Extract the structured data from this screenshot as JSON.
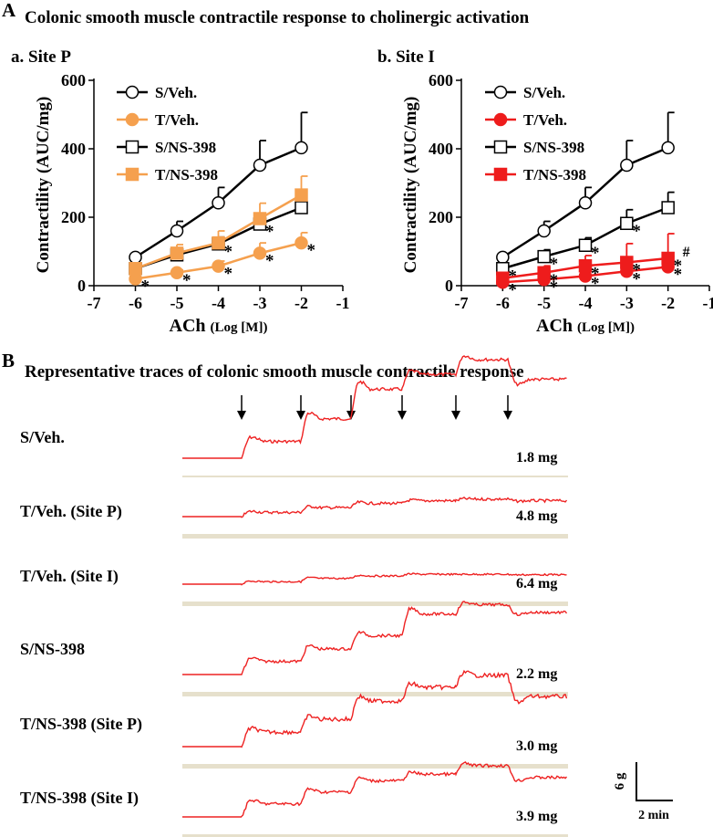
{
  "figure": {
    "panel_a_letter": "A",
    "panel_a_title": "Colonic smooth muscle contractile response to cholinergic activation",
    "panel_b_letter": "B",
    "panel_b_title": "Representative traces of colonic smooth muscle contractile response",
    "scale_bar": {
      "y_label": "6 g",
      "x_label": "2 min"
    }
  },
  "colors": {
    "black": "#000000",
    "orange": "#f5a04e",
    "red": "#ee1c1c",
    "trace": "#ee2222",
    "baseline_bar": "#e6e0cc"
  },
  "chart_data": [
    {
      "type": "line",
      "panel_label": "a. Site P",
      "ylabel": "Contractility (AUC/mg)",
      "xlabel_main": "ACh",
      "xlabel_unit": "(Log [M])",
      "x_ticks": [
        -7,
        -6,
        -5,
        -4,
        -3,
        -2,
        -1
      ],
      "y_ticks": [
        0,
        200,
        400,
        600
      ],
      "xlim": [
        -7,
        -1
      ],
      "ylim": [
        0,
        600
      ],
      "x": [
        -6,
        -5,
        -4,
        -3,
        -2
      ],
      "series": [
        {
          "name": "S/Veh.",
          "color": "#000000",
          "marker": "circle",
          "filled": false,
          "values": [
            83,
            160,
            242,
            352,
            403
          ],
          "errors": [
            8,
            28,
            45,
            72,
            103
          ]
        },
        {
          "name": "T/Veh.",
          "color": "#f5a04e",
          "marker": "circle",
          "filled": true,
          "values": [
            20,
            38,
            57,
            95,
            125
          ],
          "errors": [
            6,
            8,
            15,
            30,
            30
          ],
          "stars": [
            true,
            true,
            true,
            true,
            true
          ]
        },
        {
          "name": "S/NS-398",
          "color": "#000000",
          "marker": "square",
          "filled": false,
          "values": [
            50,
            90,
            122,
            180,
            228
          ],
          "errors": [
            8,
            15,
            20,
            30,
            35
          ],
          "stars": [
            false,
            false,
            true,
            true,
            false
          ]
        },
        {
          "name": "T/NS-398",
          "color": "#f5a04e",
          "marker": "square",
          "filled": true,
          "values": [
            50,
            95,
            125,
            196,
            265
          ],
          "errors": [
            10,
            25,
            35,
            45,
            55
          ]
        }
      ]
    },
    {
      "type": "line",
      "panel_label": "b. Site I",
      "ylabel": "Contractility (AUC/mg)",
      "xlabel_main": "ACh",
      "xlabel_unit": "(Log [M])",
      "x_ticks": [
        -7,
        -6,
        -5,
        -4,
        -3,
        -2,
        -1
      ],
      "y_ticks": [
        0,
        200,
        400,
        600
      ],
      "xlim": [
        -7,
        -1
      ],
      "ylim": [
        0,
        600
      ],
      "x": [
        -6,
        -5,
        -4,
        -3,
        -2
      ],
      "series": [
        {
          "name": "S/Veh.",
          "color": "#000000",
          "marker": "circle",
          "filled": false,
          "values": [
            83,
            160,
            242,
            352,
            403
          ],
          "errors": [
            8,
            28,
            45,
            72,
            103
          ]
        },
        {
          "name": "T/Veh.",
          "color": "#ee1c1c",
          "marker": "circle",
          "filled": true,
          "values": [
            10,
            18,
            28,
            42,
            55
          ],
          "errors": [
            8,
            12,
            15,
            25,
            30
          ],
          "stars": [
            true,
            true,
            true,
            true,
            true
          ]
        },
        {
          "name": "S/NS-398",
          "color": "#000000",
          "marker": "square",
          "filled": false,
          "values": [
            50,
            85,
            118,
            182,
            228
          ],
          "errors": [
            8,
            20,
            22,
            40,
            45
          ],
          "stars": [
            true,
            true,
            true,
            true,
            false
          ]
        },
        {
          "name": "T/NS-398",
          "color": "#ee1c1c",
          "marker": "square",
          "filled": true,
          "values": [
            22,
            38,
            58,
            68,
            80
          ],
          "errors": [
            15,
            20,
            30,
            55,
            72
          ],
          "stars": [
            false,
            true,
            true,
            true,
            true
          ],
          "hash": [
            false,
            false,
            false,
            false,
            true
          ]
        }
      ]
    }
  ],
  "traces": [
    {
      "label": "S/Veh.",
      "scale": "1.8 mg",
      "steps": [
        0,
        0.17,
        0.4,
        0.7,
        0.85,
        1.0,
        0.8
      ],
      "noise": 0.55
    },
    {
      "label": "T/Veh. (Site P)",
      "scale": "4.8 mg",
      "steps": [
        0,
        0.08,
        0.17,
        0.25,
        0.3,
        0.33,
        0.3
      ],
      "noise": 0.5
    },
    {
      "label": "T/Veh. (Site I)",
      "scale": "6.4 mg",
      "steps": [
        0,
        0.06,
        0.14,
        0.2,
        0.24,
        0.24,
        0.23
      ],
      "noise": 0.3
    },
    {
      "label": "S/NS-398",
      "scale": "2.2 mg",
      "steps": [
        0,
        0.17,
        0.33,
        0.5,
        0.78,
        0.9,
        0.8
      ],
      "noise": 0.5
    },
    {
      "label": "T/NS-398 (Site P)",
      "scale": "3.0 mg",
      "steps": [
        0,
        0.16,
        0.3,
        0.5,
        0.65,
        0.78,
        0.55
      ],
      "noise": 0.75
    },
    {
      "label": "T/NS-398 (Site I)",
      "scale": "3.9 mg",
      "steps": [
        0,
        0.2,
        0.38,
        0.55,
        0.65,
        0.78,
        0.6
      ],
      "noise": 0.55
    }
  ],
  "arrow_count": 6
}
